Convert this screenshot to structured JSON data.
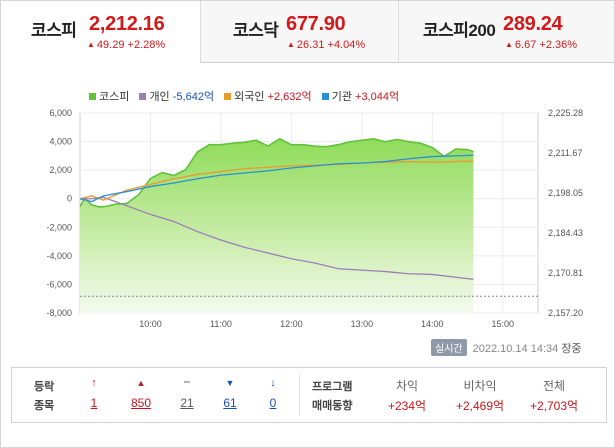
{
  "tabs": [
    {
      "name": "코스피",
      "value": "2,212.16",
      "change": "49.29",
      "rate": "+2.28%",
      "active": true
    },
    {
      "name": "코스닥",
      "value": "677.90",
      "change": "26.31",
      "rate": "+4.04%",
      "active": false
    },
    {
      "name": "코스피200",
      "value": "289.24",
      "change": "6.67",
      "rate": "+2.36%",
      "active": false
    }
  ],
  "legend": [
    {
      "label": "코스피",
      "value": "",
      "color": "#5fc23a"
    },
    {
      "label": "개인",
      "value": "-5,642억",
      "color": "#9b7fb8"
    },
    {
      "label": "외국인",
      "value": "+2,632억",
      "color": "#e89a2c"
    },
    {
      "label": "기관",
      "value": "+3,044억",
      "color": "#2a8fd6"
    }
  ],
  "chart_data": {
    "type": "area",
    "x_ticks": [
      "10:00",
      "11:00",
      "12:00",
      "13:00",
      "14:00",
      "15:00"
    ],
    "y_left_ticks": [
      "6,000",
      "4,000",
      "2,000",
      "0",
      "-2,000",
      "-4,000",
      "-6,000",
      "-8,000"
    ],
    "y_left_range": [
      -8000,
      6000
    ],
    "y_right_ticks": [
      "2,225.28",
      "2,211.67",
      "2,198.05",
      "2,184.43",
      "2,170.81",
      "2,157.20"
    ],
    "y_right_range": [
      2157.2,
      2225.28
    ],
    "x_range_minutes": [
      0,
      390
    ],
    "reference_line_index": 2162.9,
    "series": [
      {
        "name": "코스피",
        "axis": "right",
        "color": "#5fc23a",
        "x": [
          0,
          4,
          10,
          16,
          22,
          30,
          40,
          50,
          60,
          70,
          80,
          90,
          100,
          110,
          120,
          130,
          140,
          150,
          160,
          170,
          180,
          190,
          200,
          210,
          220,
          230,
          240,
          250,
          260,
          270,
          280,
          290,
          300,
          310,
          320,
          330,
          335
        ],
        "y": [
          2193.5,
          2196.2,
          2194.0,
          2193.3,
          2193.5,
          2194.2,
          2194.5,
          2197.5,
          2203.0,
          2205.0,
          2204.0,
          2206.0,
          2212.0,
          2214.5,
          2214.5,
          2215.0,
          2215.3,
          2216.0,
          2214.0,
          2216.5,
          2214.5,
          2214.5,
          2214.0,
          2213.8,
          2214.5,
          2215.5,
          2216.0,
          2216.5,
          2215.5,
          2216.3,
          2215.5,
          2215.0,
          2213.5,
          2210.5,
          2213.0,
          2212.8,
          2212.16
        ]
      },
      {
        "name": "개인",
        "axis": "left",
        "color": "#9b7fb8",
        "x": [
          0,
          10,
          20,
          40,
          60,
          80,
          100,
          120,
          140,
          160,
          180,
          200,
          220,
          240,
          260,
          280,
          300,
          320,
          335
        ],
        "y": [
          0,
          0,
          100,
          -500,
          -1100,
          -1600,
          -2300,
          -2900,
          -3400,
          -3800,
          -4200,
          -4500,
          -4900,
          -5000,
          -5100,
          -5250,
          -5300,
          -5500,
          -5642
        ]
      },
      {
        "name": "외국인",
        "axis": "left",
        "color": "#e89a2c",
        "x": [
          0,
          10,
          20,
          40,
          60,
          80,
          100,
          120,
          140,
          160,
          180,
          200,
          220,
          240,
          260,
          280,
          300,
          320,
          335
        ],
        "y": [
          0,
          200,
          -100,
          600,
          1000,
          1400,
          1700,
          1900,
          2100,
          2200,
          2300,
          2350,
          2400,
          2500,
          2550,
          2600,
          2550,
          2600,
          2632
        ]
      },
      {
        "name": "기관",
        "axis": "left",
        "color": "#2a8fd6",
        "x": [
          0,
          10,
          20,
          40,
          60,
          80,
          100,
          120,
          140,
          160,
          180,
          200,
          220,
          240,
          260,
          280,
          300,
          320,
          335
        ],
        "y": [
          0,
          -200,
          200,
          500,
          850,
          1100,
          1400,
          1650,
          1800,
          1950,
          2150,
          2300,
          2450,
          2500,
          2600,
          2800,
          2950,
          3000,
          3044
        ]
      }
    ]
  },
  "realtime": {
    "badge": "실시간",
    "datetime": "2022.10.14 14:34",
    "status": "장중"
  },
  "breadth": {
    "label_line1": "등락",
    "label_line2": "종목",
    "items": [
      {
        "icon": "↑",
        "value": "1",
        "color": "red"
      },
      {
        "icon": "▲",
        "value": "850",
        "color": "red"
      },
      {
        "icon": "‒",
        "value": "21",
        "color": "gray"
      },
      {
        "icon": "▼",
        "value": "61",
        "color": "blue"
      },
      {
        "icon": "↓",
        "value": "0",
        "color": "blue"
      }
    ]
  },
  "program": {
    "label_line1": "프로그램",
    "label_line2": "매매동향",
    "columns": [
      {
        "head": "차익",
        "value": "+234억"
      },
      {
        "head": "비차익",
        "value": "+2,469억"
      },
      {
        "head": "전체",
        "value": "+2,703억"
      }
    ]
  }
}
